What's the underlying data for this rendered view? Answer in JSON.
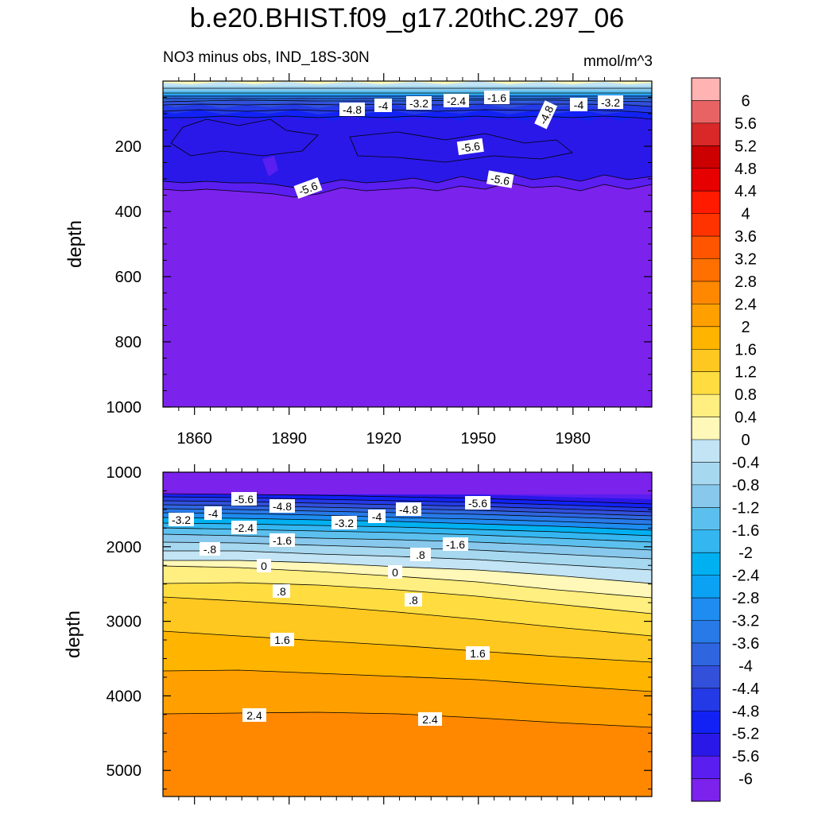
{
  "chart_data": {
    "type": "contour",
    "title": "b.e20.BHIST.f09_g17.20thC.297_06",
    "variable_label": "NO3 minus obs, IND_18S-30N",
    "units": "mmol/m^3",
    "panels": [
      {
        "name": "upper",
        "ylabel": "depth",
        "ylim": [
          0,
          1000
        ],
        "yticks": [
          200,
          400,
          600,
          800,
          1000
        ],
        "ytick_labels": [
          "200",
          "400",
          "600",
          "800",
          "1000"
        ],
        "xlim": [
          1850,
          2005
        ],
        "xticks": [
          1860,
          1890,
          1920,
          1950,
          1980
        ],
        "xtick_labels": [
          "1860",
          "1890",
          "1920",
          "1950",
          "1980"
        ],
        "contour_labels": [
          "-4.8",
          "-4",
          "-3.2",
          "-2.4",
          "-1.6",
          "-4.8",
          "-4",
          "-3.2",
          "-5.6",
          "-5.6",
          "-5.6"
        ]
      },
      {
        "name": "lower",
        "ylabel": "depth",
        "ylim": [
          1000,
          5350
        ],
        "yticks": [
          1000,
          2000,
          3000,
          4000,
          5000
        ],
        "ytick_labels": [
          "1000",
          "2000",
          "3000",
          "4000",
          "5000"
        ],
        "xlim": [
          1850,
          2005
        ],
        "contour_labels": [
          "-5.6",
          "-4.8",
          "-4",
          "-3.2",
          "-2.4",
          "-1.6",
          "-.8",
          "-3.2",
          "-4",
          "-4.8",
          "-5.6",
          "-1.6",
          ".8",
          "0",
          "0",
          ".8",
          ".8",
          "1.6",
          "1.6",
          "2.4",
          "2.4"
        ]
      }
    ],
    "colorbar": {
      "labels": [
        "6",
        "5.6",
        "5.2",
        "4.8",
        "4.4",
        "4",
        "3.6",
        "3.2",
        "2.8",
        "2.4",
        "2",
        "1.6",
        "1.2",
        "0.8",
        "0.4",
        "0",
        "-0.4",
        "-0.8",
        "-1.2",
        "-1.6",
        "-2",
        "-2.4",
        "-2.8",
        "-3.2",
        "-3.6",
        "-4",
        "-4.4",
        "-4.8",
        "-5.2",
        "-5.6",
        "-6"
      ],
      "colors": [
        "#ffb3b3",
        "#e86464",
        "#d82828",
        "#cc0000",
        "#e60000",
        "#ff1a00",
        "#ff3300",
        "#ff5500",
        "#ff7000",
        "#ff8800",
        "#ffa000",
        "#ffb500",
        "#ffc820",
        "#ffdd40",
        "#ffee80",
        "#fff8b8",
        "#c2e4f4",
        "#a6d8f0",
        "#88c8ec",
        "#5cc0ee",
        "#34b6f0",
        "#00b0f0",
        "#0ca2f4",
        "#1e8cf0",
        "#287ae8",
        "#2f66e0",
        "#3250da",
        "#243ae6",
        "#1222f4",
        "#2a18e8",
        "#5a1ef0",
        "#7b22ec"
      ]
    }
  }
}
